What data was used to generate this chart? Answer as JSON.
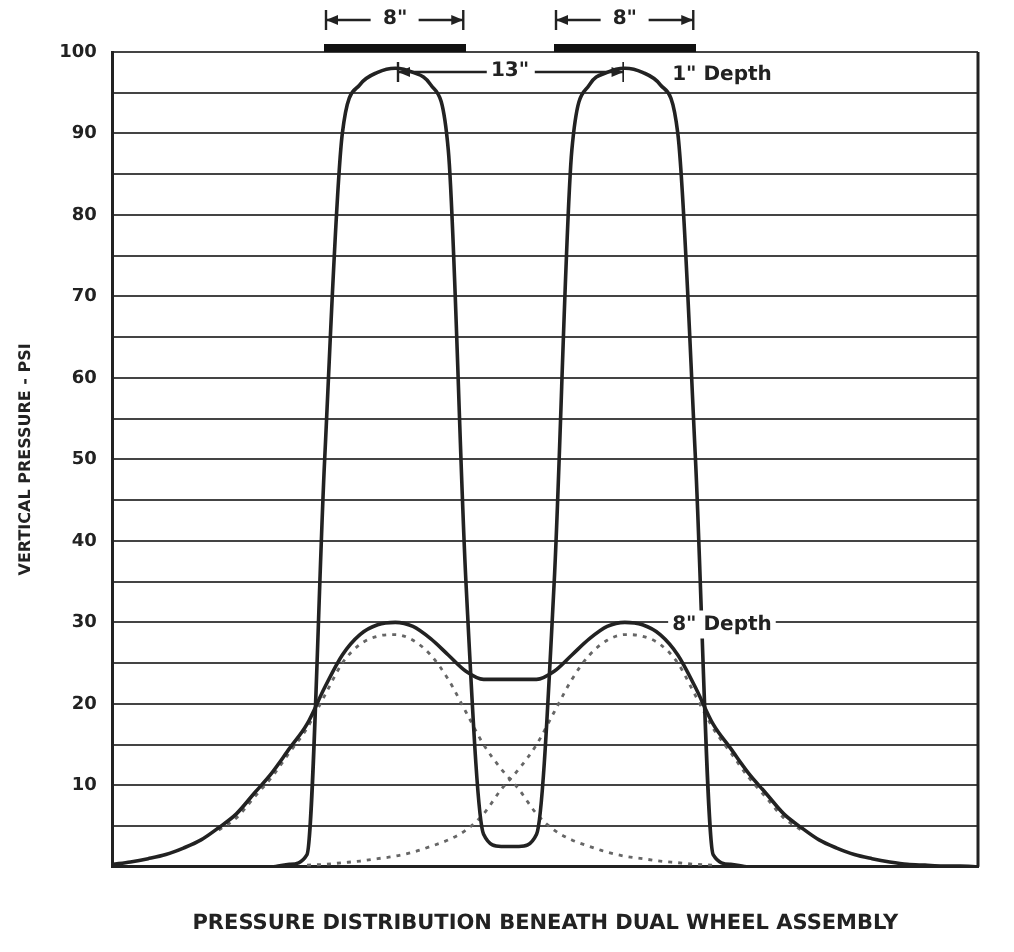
{
  "chart_data": {
    "type": "line",
    "xlabel": "PRESSURE DISTRIBUTION BENEATH DUAL WHEEL ASSEMBLY",
    "ylabel": "VERTICAL PRESSURE - PSI",
    "categories": [
      null,
      null,
      null,
      null,
      null,
      null,
      null,
      null,
      null,
      null,
      null,
      null,
      null,
      null,
      null,
      null,
      null,
      null,
      null,
      null,
      null,
      null,
      null,
      null,
      null,
      null,
      null,
      null,
      null,
      null,
      null,
      null,
      null,
      null,
      null,
      null,
      null,
      null,
      null,
      null,
      null,
      null,
      null,
      null,
      null,
      null,
      null,
      null,
      null,
      null
    ],
    "series": [
      {
        "name": "1\" Depth",
        "color": "#222222",
        "line_style": "solid",
        "values": [
          0,
          0,
          0,
          0,
          0,
          0,
          0,
          0,
          0,
          0,
          0.3,
          1.5,
          50,
          90,
          96,
          97.5,
          98,
          97.5,
          96,
          88,
          35,
          4,
          2.5,
          2.5,
          4,
          35,
          88,
          96,
          97.5,
          98,
          97.5,
          96,
          90,
          50,
          1.5,
          0.3,
          0,
          0,
          0,
          0,
          0,
          0,
          0,
          0,
          0,
          0,
          0,
          0,
          0,
          0
        ]
      },
      {
        "name": "8\" Depth",
        "color": "#222222",
        "line_style": "solid",
        "values": [
          0.3,
          0.6,
          1,
          1.5,
          2.3,
          3.3,
          4.8,
          6.5,
          9,
          11.5,
          14.5,
          17.5,
          22,
          26,
          28.5,
          29.7,
          30,
          29.5,
          28,
          26,
          24,
          23,
          23,
          23,
          23,
          24,
          26,
          28,
          29.5,
          30,
          29.7,
          28.5,
          26,
          22,
          17.5,
          14.5,
          11.5,
          9,
          6.5,
          4.8,
          3.3,
          2.3,
          1.5,
          1,
          0.6,
          0.3,
          0.2,
          0.1,
          0.1,
          0
        ]
      },
      {
        "color": "#666666",
        "line_style": "dotted",
        "values": [
          null,
          null,
          null,
          null,
          null,
          null,
          4.5,
          6,
          8.5,
          11,
          14,
          17,
          21,
          25,
          27.3,
          28.3,
          28.5,
          27.8,
          26,
          23,
          19,
          15,
          12,
          9.5,
          6.5,
          4.5,
          3.3,
          2.5,
          1.8,
          1.3,
          1,
          0.7,
          0.5,
          0.3,
          0.2,
          null,
          null,
          null,
          null,
          null,
          null,
          null,
          null,
          null,
          null,
          null,
          null,
          null,
          null,
          null
        ]
      },
      {
        "color": "#666666",
        "line_style": "dotted",
        "values": [
          null,
          null,
          null,
          null,
          null,
          null,
          null,
          null,
          null,
          null,
          null,
          0.2,
          0.3,
          0.5,
          0.7,
          1,
          1.3,
          1.8,
          2.5,
          3.3,
          4.5,
          6.5,
          9.5,
          12,
          15,
          19,
          23,
          26,
          27.8,
          28.5,
          28.3,
          27.3,
          25,
          21,
          17,
          14,
          11,
          8.5,
          6,
          4.5,
          null,
          null,
          null,
          null,
          null,
          null,
          null,
          null,
          null,
          null
        ]
      }
    ],
    "ylim": [
      0,
      100
    ],
    "yticks": [
      {
        "value": 0,
        "label": null
      },
      {
        "value": 5,
        "label": null
      },
      10,
      {
        "value": 15,
        "label": null
      },
      20,
      {
        "value": 25,
        "label": null
      },
      30,
      {
        "value": 35,
        "label": null
      },
      40,
      {
        "value": 45,
        "label": null
      },
      50,
      {
        "value": 55,
        "label": null
      },
      60,
      {
        "value": 65,
        "label": null
      },
      70,
      {
        "value": 75,
        "label": null
      },
      80,
      {
        "value": 85,
        "label": null
      },
      90,
      {
        "value": 95,
        "label": null
      },
      100
    ],
    "grid": "y",
    "tick_labels": "y",
    "legend": false,
    "marker": "none",
    "annotations": [
      "8\"",
      "13\"",
      "8\""
    ]
  }
}
